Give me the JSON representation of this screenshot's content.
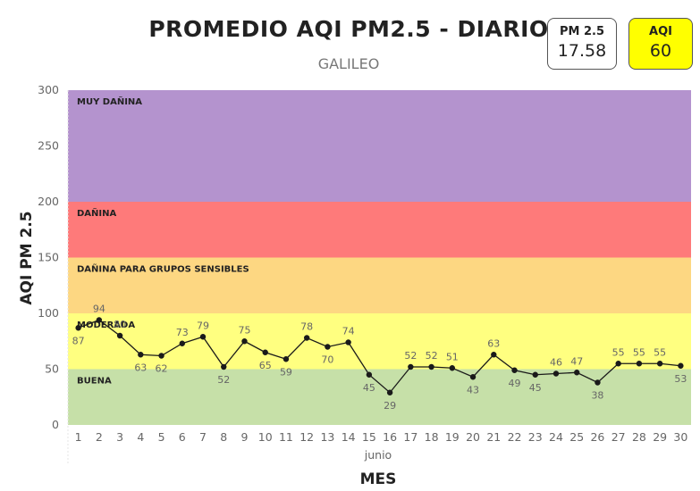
{
  "header": {
    "title": "PROMEDIO AQI PM2.5 - DIARIO",
    "subtitle": "GALILEO"
  },
  "cards": {
    "pm": {
      "label": "PM 2.5",
      "value": "17.58",
      "color": "#ffffff"
    },
    "aqi": {
      "label": "AQI",
      "value": "60",
      "color": "#ffff00"
    }
  },
  "chart_data": {
    "type": "line",
    "x": [
      1,
      2,
      3,
      4,
      5,
      6,
      7,
      8,
      9,
      10,
      11,
      12,
      13,
      14,
      15,
      16,
      17,
      18,
      19,
      20,
      21,
      22,
      23,
      24,
      25,
      26,
      27,
      28,
      29,
      30
    ],
    "series": [
      {
        "values": [
          87,
          94,
          80,
          63,
          62,
          73,
          79,
          52,
          75,
          65,
          59,
          78,
          70,
          74,
          45,
          29,
          52,
          52,
          51,
          43,
          63,
          49,
          45,
          46,
          47,
          38,
          55,
          55,
          55,
          53
        ]
      }
    ],
    "xlabel": "MES",
    "xsublabel": "junio",
    "ylabel": "AQI PM 2.5",
    "ylim": [
      0,
      300
    ],
    "yticks": [
      0,
      50,
      100,
      150,
      200,
      250,
      300
    ],
    "bands": [
      {
        "label": "BUENA",
        "from": 0,
        "to": 50,
        "color": "#c6e0a8"
      },
      {
        "label": "MODERADA",
        "from": 50,
        "to": 100,
        "color": "#ffff80"
      },
      {
        "label": "DAÑINA PARA GRUPOS SENSIBLES",
        "from": 100,
        "to": 150,
        "color": "#fdd782"
      },
      {
        "label": "DAÑINA",
        "from": 150,
        "to": 200,
        "color": "#fe7a7a"
      },
      {
        "label": "MUY DAÑINA",
        "from": 200,
        "to": 300,
        "color": "#b493ce"
      }
    ],
    "line_color": "#1a1a1a"
  }
}
